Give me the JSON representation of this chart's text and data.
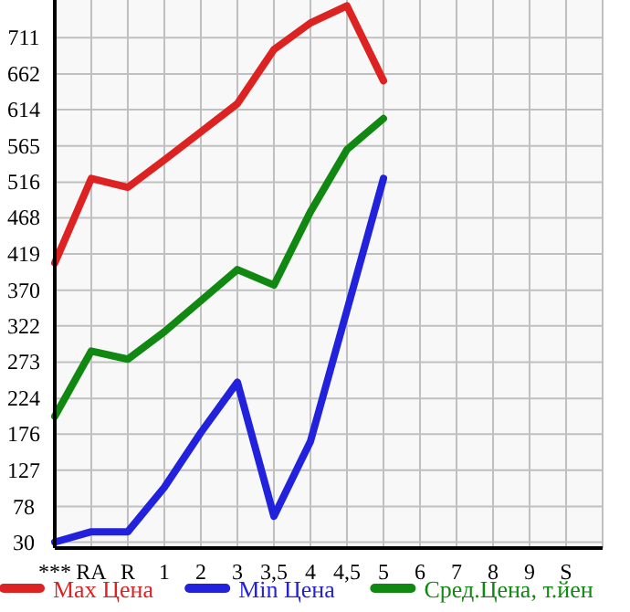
{
  "chart_data": {
    "type": "line",
    "categories": [
      "***",
      "RA",
      "R",
      "1",
      "2",
      "3",
      "3,5",
      "4",
      "4,5",
      "5",
      "6",
      "7",
      "8",
      "9",
      "S"
    ],
    "series": [
      {
        "name": "Max Цена",
        "color": "#dd2222",
        "values": [
          407,
          521,
          509,
          546,
          584,
          622,
          695,
          731,
          754,
          653,
          null,
          null,
          null,
          null,
          null
        ]
      },
      {
        "name": "Min Цена",
        "color": "#2222dd",
        "values": [
          30,
          44,
          44,
          104,
          178,
          246,
          65,
          166,
          343,
          521,
          null,
          null,
          null,
          null,
          null
        ]
      },
      {
        "name": "Сред.Цена, т.йен",
        "color": "#118811",
        "values": [
          200,
          288,
          277,
          314,
          356,
          398,
          377,
          476,
          560,
          602,
          null,
          null,
          null,
          null,
          null
        ]
      }
    ],
    "ylim": [
      22,
      762
    ],
    "yticks": [
      30,
      78,
      127,
      176,
      224,
      273,
      322,
      370,
      419,
      468,
      516,
      565,
      614,
      662,
      711
    ],
    "grid": true,
    "legend": "bottom",
    "marker": "none",
    "line_style": "solid"
  }
}
